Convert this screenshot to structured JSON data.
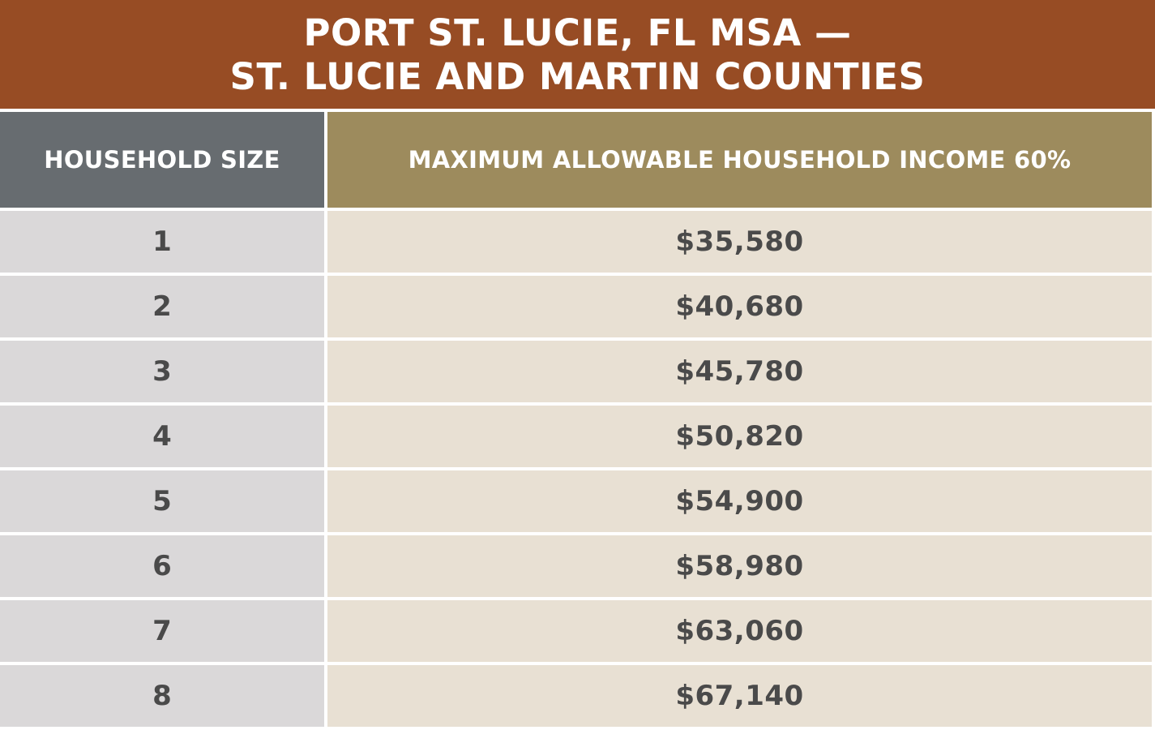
{
  "title": {
    "line1": "PORT ST. LUCIE, FL MSA —",
    "line2": "ST. LUCIE AND MARTIN COUNTIES"
  },
  "table": {
    "headers": {
      "household_size": "HOUSEHOLD SIZE",
      "max_income": "MAXIMUM ALLOWABLE HOUSEHOLD INCOME 60%"
    },
    "rows": [
      {
        "size": "1",
        "income": "$35,580"
      },
      {
        "size": "2",
        "income": "$40,680"
      },
      {
        "size": "3",
        "income": "$45,780"
      },
      {
        "size": "4",
        "income": "$50,820"
      },
      {
        "size": "5",
        "income": "$54,900"
      },
      {
        "size": "6",
        "income": "$58,980"
      },
      {
        "size": "7",
        "income": "$63,060"
      },
      {
        "size": "8",
        "income": "$67,140"
      }
    ]
  },
  "colors": {
    "title_bg": "#974c24",
    "header_size_bg": "#676c70",
    "header_income_bg": "#9d8b5d",
    "size_cell_bg": "#dad8d9",
    "income_cell_bg": "#e8e0d3"
  }
}
